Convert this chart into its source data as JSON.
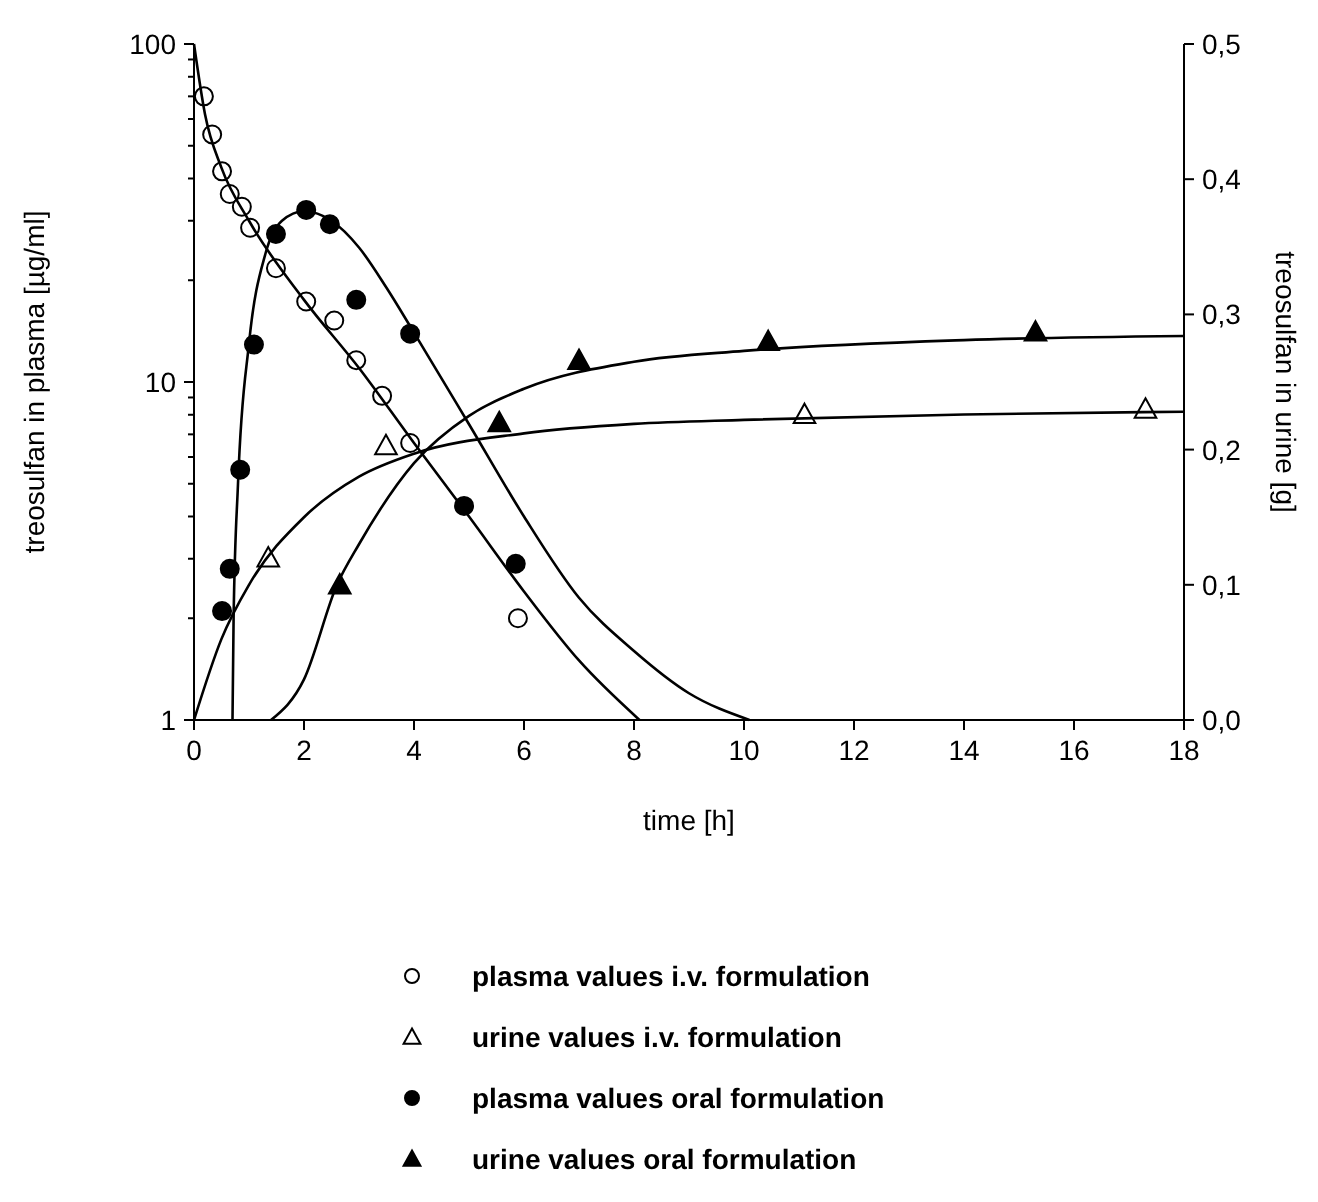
{
  "chart_data": {
    "type": "scatter",
    "xlabel": "time [h]",
    "ylabel": "treosulfan in plasma [µg/ml]",
    "y2label": "treosulfan in urine [g]",
    "xlim": [
      0,
      18
    ],
    "xticks": [
      0,
      2,
      4,
      6,
      8,
      10,
      12,
      14,
      16,
      18
    ],
    "ylim": [
      1,
      100
    ],
    "yticks": [
      1,
      {
        "value": 2,
        "label": null
      },
      {
        "value": 3,
        "label": null
      },
      {
        "value": 4,
        "label": null
      },
      {
        "value": 5,
        "label": null
      },
      {
        "value": 6,
        "label": null
      },
      {
        "value": 7,
        "label": null
      },
      {
        "value": 8,
        "label": null
      },
      {
        "value": 9,
        "label": null
      },
      10,
      {
        "value": 20,
        "label": null
      },
      {
        "value": 30,
        "label": null
      },
      {
        "value": 40,
        "label": null
      },
      {
        "value": 50,
        "label": null
      },
      {
        "value": 60,
        "label": null
      },
      {
        "value": 70,
        "label": null
      },
      {
        "value": 80,
        "label": null
      },
      {
        "value": 90,
        "label": null
      },
      100
    ],
    "log": "y",
    "y2lim": [
      0,
      0.5
    ],
    "y2ticks": [
      {
        "value": 0,
        "label": "0,0"
      },
      {
        "value": 0.1,
        "label": "0,1"
      },
      {
        "value": 0.2,
        "label": "0,2"
      },
      {
        "value": 0.3,
        "label": "0,3"
      },
      {
        "value": 0.4,
        "label": "0,4"
      },
      {
        "value": 0.5,
        "label": "0,5"
      }
    ],
    "legend": "bottom",
    "grid": false,
    "series": [
      {
        "name": "plasma values i.v. formulation",
        "marker": "circle",
        "color": "#ffffff",
        "x": [
          0.18,
          0.33,
          0.51,
          0.65,
          0.87,
          1.02,
          1.49,
          2.04,
          2.55,
          2.95,
          3.42,
          3.93,
          5.89
        ],
        "values": [
          70,
          54,
          42,
          36,
          33,
          28.6,
          21.7,
          17.3,
          15.2,
          11.6,
          9.1,
          6.6,
          2.0
        ]
      },
      {
        "name": "urine values i.v. formulation",
        "marker": "triangle",
        "color": "#ffffff",
        "axis": "y2",
        "x": [
          1.35,
          3.49,
          11.1,
          17.3
        ],
        "values": [
          0.12,
          0.203,
          0.226,
          0.23
        ]
      },
      {
        "name": "plasma values oral formulation",
        "marker": "circle",
        "color": "#000000",
        "x": [
          0.51,
          0.65,
          0.84,
          1.09,
          1.49,
          2.04,
          2.47,
          2.95,
          3.93,
          4.91,
          5.85
        ],
        "values": [
          2.1,
          2.8,
          5.5,
          12.9,
          27.4,
          32.3,
          29.3,
          17.5,
          13.9,
          4.3,
          2.9
        ]
      },
      {
        "name": "urine values oral formulation",
        "marker": "triangle",
        "color": "#000000",
        "axis": "y2",
        "x": [
          2.65,
          5.55,
          7.0,
          10.44,
          15.3
        ],
        "values": [
          0.1,
          0.22,
          0.266,
          0.28,
          0.287
        ]
      },
      {
        "type": "line",
        "color": "#000000",
        "x": [
          0,
          0.2,
          0.5,
          1,
          2,
          3,
          4,
          5,
          6,
          7,
          8.1
        ],
        "values": [
          100,
          62,
          43,
          30,
          17.5,
          11,
          6.6,
          4,
          2.4,
          1.5,
          1
        ]
      },
      {
        "type": "line",
        "color": "#000000",
        "x": [
          0.7,
          0.72,
          0.8,
          1,
          1.3,
          1.6,
          2,
          2.5,
          3,
          3.5,
          4,
          5,
          6,
          7,
          8,
          9,
          10.1
        ],
        "values": [
          1,
          2,
          5,
          13,
          24,
          30,
          32,
          30,
          25,
          19,
          14,
          7.5,
          4,
          2.3,
          1.6,
          1.2,
          1
        ]
      },
      {
        "type": "line",
        "color": "#000000",
        "axis": "y2",
        "x": [
          0,
          0.5,
          1,
          2,
          3,
          4,
          6,
          8,
          10,
          14,
          18
        ],
        "values": [
          0,
          0.06,
          0.1,
          0.15,
          0.18,
          0.197,
          0.212,
          0.219,
          0.222,
          0.226,
          0.228
        ]
      },
      {
        "type": "line",
        "color": "#000000",
        "axis": "y2",
        "x": [
          1.4,
          2,
          2.6,
          3,
          4,
          5,
          6,
          8,
          10,
          14,
          18
        ],
        "values": [
          0,
          0.03,
          0.1,
          0.13,
          0.19,
          0.225,
          0.245,
          0.265,
          0.273,
          0.281,
          0.284
        ]
      }
    ]
  }
}
